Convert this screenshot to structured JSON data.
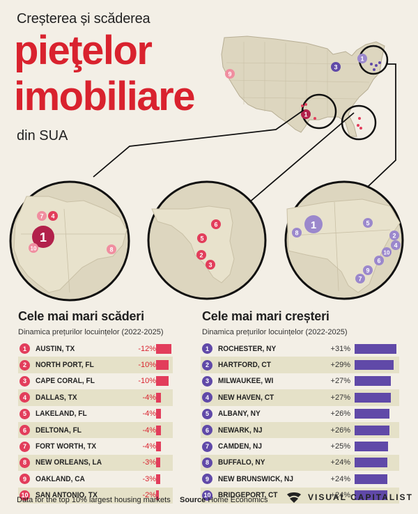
{
  "title": {
    "line1": "Creșterea și scăderea",
    "line2": "pieţelor",
    "line3": "imobiliare",
    "line4": "din SUA"
  },
  "colors": {
    "decline": "#e23d5b",
    "decline_text": "#d9222e",
    "growth": "#6049a8",
    "growth_light": "#9b88cc",
    "decline_light": "#f08ea0",
    "decline_dark": "#b2214b"
  },
  "map_markers": {
    "overview": [
      "9",
      "3",
      "1",
      "1"
    ],
    "texas": [
      "7",
      "4",
      "1",
      "10",
      "8"
    ],
    "florida": [
      "6",
      "5",
      "2",
      "3"
    ],
    "northeast": [
      "8",
      "1",
      "5",
      "2",
      "4",
      "10",
      "6",
      "9",
      "7"
    ]
  },
  "declines": {
    "title": "Cele mai mari scăderi",
    "subtitle": "Dinamica prețurilor locuințelor (2022-2025)"
  },
  "increases": {
    "title": "Cele mai mari creșteri",
    "subtitle": "Dinamica prețurilor locuințelor (2022-2025)"
  },
  "chart_data": [
    {
      "type": "bar",
      "title": "Cele mai mari scăderi",
      "subtitle": "Dinamica prețurilor locuințelor (2022-2025)",
      "categories": [
        "AUSTIN, TX",
        "NORTH PORT, FL",
        "CAPE CORAL, FL",
        "DALLAS, TX",
        "LAKELAND, FL",
        "DELTONA, FL",
        "FORT WORTH, TX",
        "NEW ORLEANS, LA",
        "OAKLAND, CA",
        "SAN ANTONIO, TX"
      ],
      "ranks": [
        "1",
        "2",
        "3",
        "4",
        "5",
        "6",
        "7",
        "8",
        "9",
        "10"
      ],
      "values": [
        -12,
        -10,
        -10,
        -4,
        -4,
        -4,
        -4,
        -3,
        -3,
        -2
      ],
      "labels": [
        "-12%",
        "-10%",
        "-10%",
        "-4%",
        "-4%",
        "-4%",
        "-4%",
        "-3%",
        "-3%",
        "-2%"
      ]
    },
    {
      "type": "bar",
      "title": "Cele mai mari creșteri",
      "subtitle": "Dinamica prețurilor locuințelor (2022-2025)",
      "categories": [
        "ROCHESTER, NY",
        "HARTFORD, CT",
        "MILWAUKEE, WI",
        "NEW HAVEN, CT",
        "ALBANY, NY",
        "NEWARK, NJ",
        "CAMDEN, NJ",
        "BUFFALO, NY",
        "NEW BRUNSWICK, NJ",
        "BRIDGEPORT, CT"
      ],
      "ranks": [
        "1",
        "2",
        "3",
        "4",
        "5",
        "6",
        "7",
        "8",
        "9",
        "10"
      ],
      "values": [
        31,
        29,
        27,
        27,
        26,
        26,
        25,
        24,
        24,
        24
      ],
      "labels": [
        "+31%",
        "+29%",
        "+27%",
        "+27%",
        "+26%",
        "+26%",
        "+25%",
        "+24%",
        "+24%",
        "+24%"
      ]
    }
  ],
  "footer": {
    "note": "Data for the top 10% largest housing markets",
    "source_label": "Source",
    "source_value": "Home Economics",
    "brand": "VISUAL CAPITALIST"
  }
}
